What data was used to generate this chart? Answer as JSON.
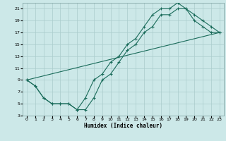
{
  "xlabel": "Humidex (Indice chaleur)",
  "ylabel": "",
  "bg_color": "#cce8e8",
  "grid_color": "#aacccc",
  "line_color": "#1a6b5a",
  "line1_x": [
    0,
    1,
    2,
    3,
    4,
    5,
    6,
    7,
    8,
    9,
    10,
    11,
    12,
    13,
    14,
    15,
    16,
    17,
    18,
    19,
    20,
    21,
    22,
    23
  ],
  "line1_y": [
    9,
    8,
    6,
    5,
    5,
    5,
    4,
    4,
    6,
    9,
    10,
    12,
    14,
    15,
    17,
    18,
    20,
    20,
    21,
    21,
    19,
    18,
    17,
    17
  ],
  "line2_x": [
    0,
    1,
    2,
    3,
    4,
    5,
    6,
    7,
    8,
    9,
    10,
    11,
    12,
    13,
    14,
    15,
    16,
    17,
    18,
    19,
    20,
    21,
    22,
    23
  ],
  "line2_y": [
    9,
    8,
    6,
    5,
    5,
    5,
    4,
    6,
    9,
    10,
    12,
    13,
    15,
    16,
    18,
    20,
    21,
    21,
    22,
    21,
    20,
    19,
    18,
    17
  ],
  "line3_x": [
    0,
    23
  ],
  "line3_y": [
    9,
    17
  ],
  "ylim": [
    3,
    22
  ],
  "xlim": [
    -0.5,
    23.5
  ],
  "yticks": [
    3,
    5,
    7,
    9,
    11,
    13,
    15,
    17,
    19,
    21
  ],
  "xticks": [
    0,
    1,
    2,
    3,
    4,
    5,
    6,
    7,
    8,
    9,
    10,
    11,
    12,
    13,
    14,
    15,
    16,
    17,
    18,
    19,
    20,
    21,
    22,
    23
  ],
  "tick_fontsize": 4.5,
  "xlabel_fontsize": 5.5
}
